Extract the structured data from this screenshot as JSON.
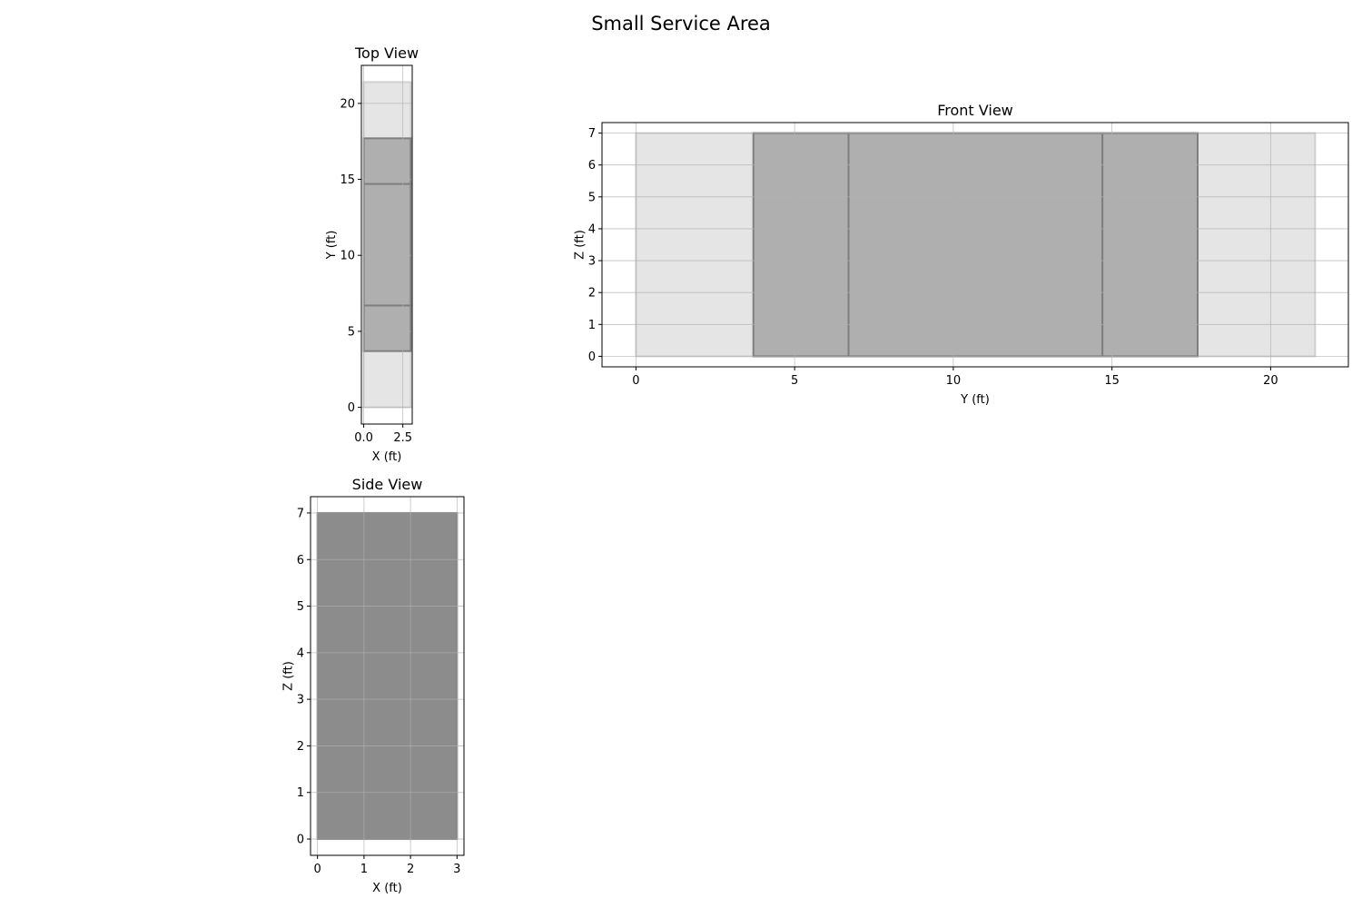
{
  "title": "Small Service Area",
  "colors": {
    "background_region": "#e5e5e5",
    "background_edge": "#d0d0d0",
    "component_fill": "#afafaf",
    "component_edge": "#7f7f7f",
    "side_fill": "#8c8c8c",
    "grid": "#b0b0b0"
  },
  "chart_data": [
    {
      "type": "area",
      "title": "Top View",
      "xlabel": "X (ft)",
      "ylabel": "Y (ft)",
      "xlim": [
        -0.15,
        3.1
      ],
      "ylim": [
        -1.1,
        22.5
      ],
      "xticks": [
        0.0,
        2.5
      ],
      "xtick_labels": [
        "0.0",
        "2.5"
      ],
      "yticks": [
        0,
        5,
        10,
        15,
        20
      ],
      "yticks_labels": [
        "0",
        "5",
        "10",
        "15",
        "20"
      ],
      "grid": true,
      "rects": [
        {
          "kind": "background",
          "x0": 0,
          "x1": 3,
          "y0": 0,
          "y1": 21.4
        },
        {
          "kind": "component",
          "x0": 0,
          "x1": 3,
          "y0": 3.7,
          "y1": 6.7
        },
        {
          "kind": "component",
          "x0": 0,
          "x1": 3,
          "y0": 6.7,
          "y1": 14.7
        },
        {
          "kind": "component",
          "x0": 0,
          "x1": 3,
          "y0": 14.7,
          "y1": 17.7
        }
      ]
    },
    {
      "type": "area",
      "title": "Front View",
      "xlabel": "Y (ft)",
      "ylabel": "Z (ft)",
      "xlim": [
        -1.07,
        22.45
      ],
      "ylim": [
        -0.33,
        7.33
      ],
      "xticks": [
        0,
        5,
        10,
        15,
        20
      ],
      "xtick_labels": [
        "0",
        "5",
        "10",
        "15",
        "20"
      ],
      "yticks": [
        0,
        1,
        2,
        3,
        4,
        5,
        6,
        7
      ],
      "yticks_labels": [
        "0",
        "1",
        "2",
        "3",
        "4",
        "5",
        "6",
        "7"
      ],
      "grid": true,
      "rects": [
        {
          "kind": "background",
          "x0": 0,
          "x1": 21.4,
          "y0": 0,
          "y1": 7
        },
        {
          "kind": "component",
          "x0": 3.7,
          "x1": 6.7,
          "y0": 0,
          "y1": 7
        },
        {
          "kind": "component",
          "x0": 6.7,
          "x1": 14.7,
          "y0": 0,
          "y1": 7
        },
        {
          "kind": "component",
          "x0": 14.7,
          "x1": 17.7,
          "y0": 0,
          "y1": 7
        }
      ]
    },
    {
      "type": "area",
      "title": "Side View",
      "xlabel": "X (ft)",
      "ylabel": "Z (ft)",
      "xlim": [
        -0.15,
        3.15
      ],
      "ylim": [
        -0.35,
        7.35
      ],
      "xticks": [
        0,
        1,
        2,
        3
      ],
      "xtick_labels": [
        "0",
        "1",
        "2",
        "3"
      ],
      "yticks": [
        0,
        1,
        2,
        3,
        4,
        5,
        6,
        7
      ],
      "yticks_labels": [
        "0",
        "1",
        "2",
        "3",
        "4",
        "5",
        "6",
        "7"
      ],
      "grid": true,
      "rects": [
        {
          "kind": "side",
          "x0": 0,
          "x1": 3,
          "y0": 0,
          "y1": 7
        }
      ]
    }
  ]
}
